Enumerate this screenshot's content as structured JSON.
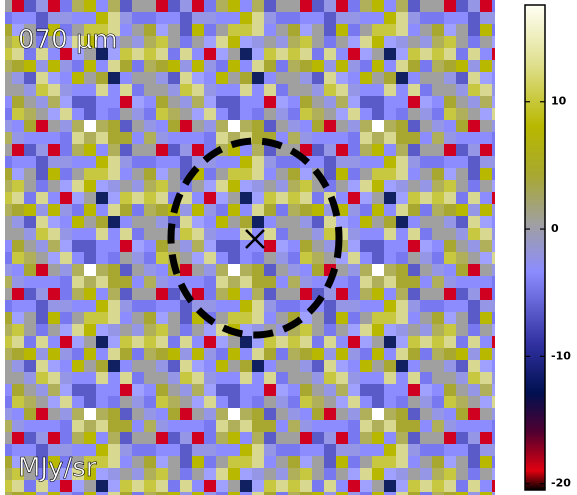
{
  "chart_data": {
    "type": "image",
    "title": "070 μm",
    "unit_label": "MJy/sr",
    "colorbar": {
      "lim": [
        -20.5,
        17.6
      ],
      "ticks": [
        -20,
        -10,
        0,
        10
      ]
    }
  }
}
